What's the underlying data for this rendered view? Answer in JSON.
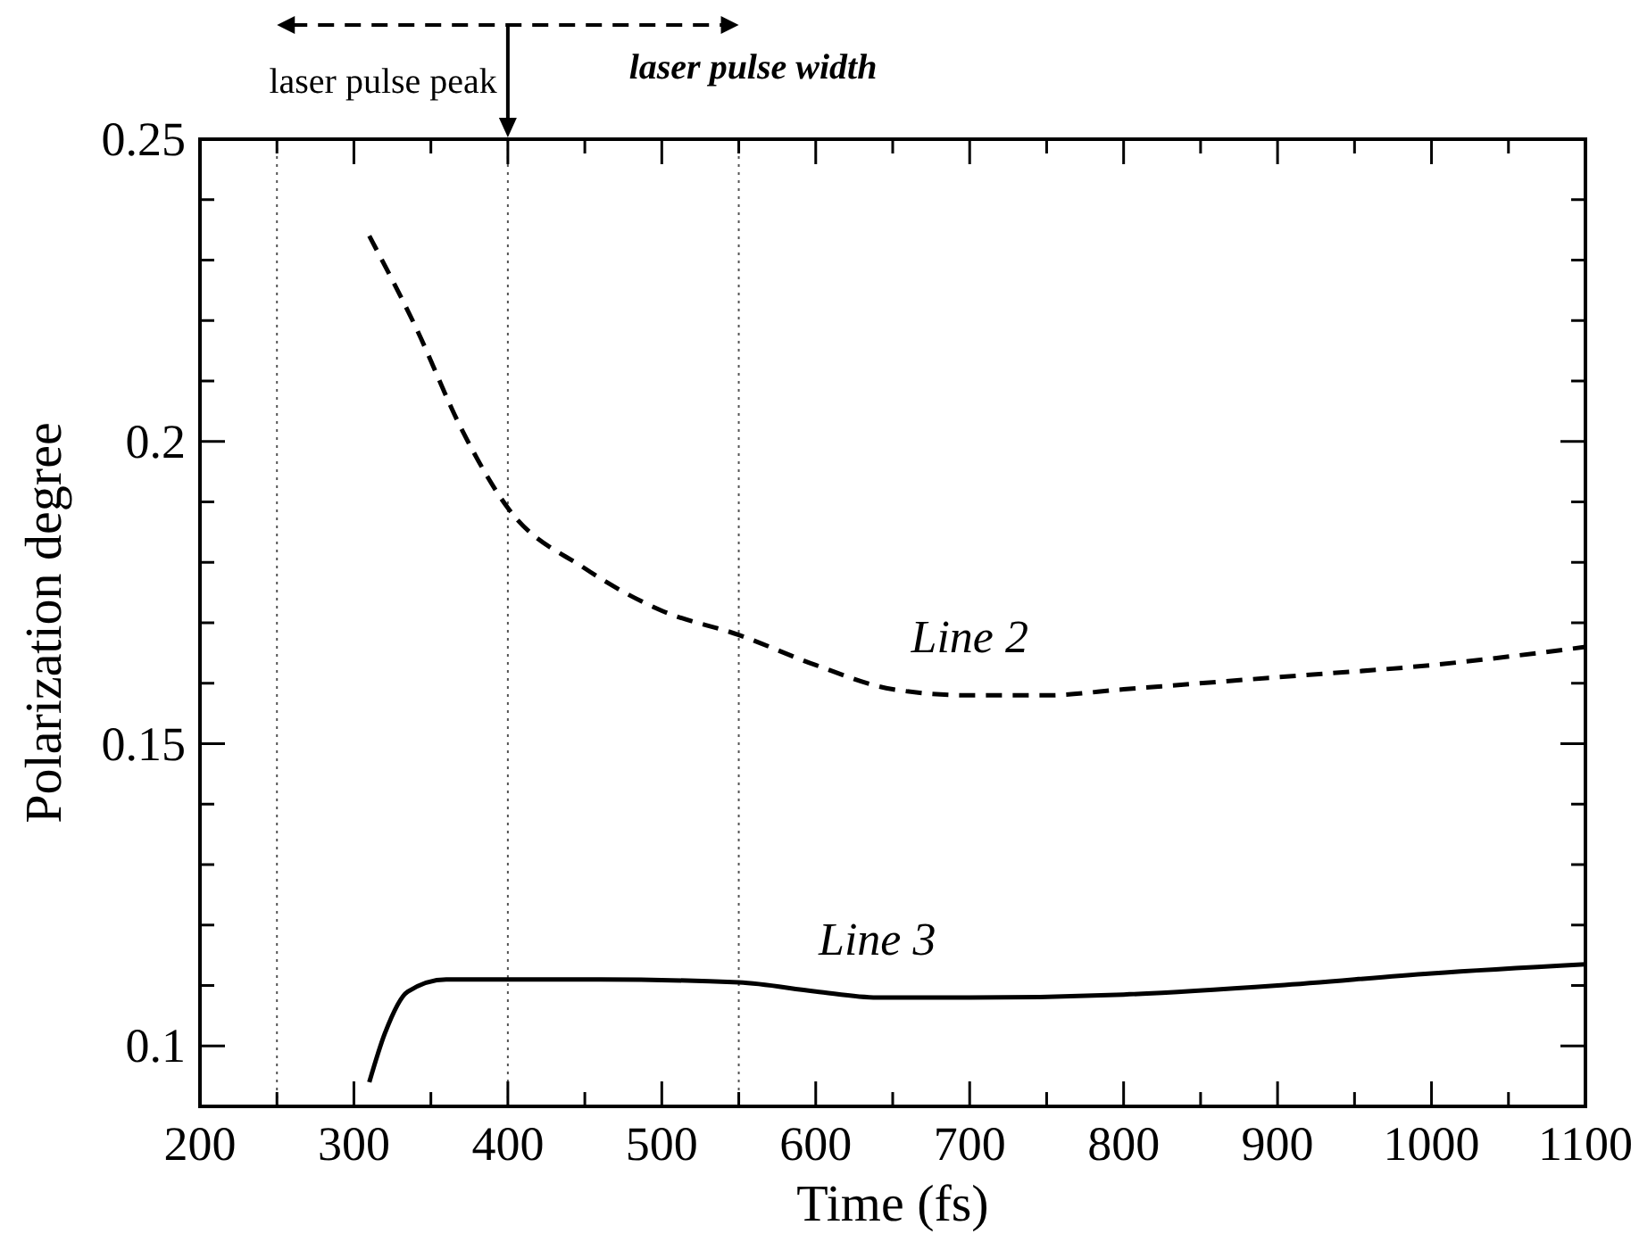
{
  "chart_data": {
    "type": "line",
    "xlabel": "Time (fs)",
    "ylabel": "Polarization degree",
    "xlim": [
      200,
      1100
    ],
    "ylim": [
      0.09,
      0.25
    ],
    "xticks": [
      200,
      {
        "value": 250,
        "label": null
      },
      300,
      {
        "value": 350,
        "label": null
      },
      400,
      {
        "value": 450,
        "label": null
      },
      500,
      {
        "value": 550,
        "label": null
      },
      600,
      {
        "value": 650,
        "label": null
      },
      700,
      {
        "value": 750,
        "label": null
      },
      800,
      {
        "value": 850,
        "label": null
      },
      900,
      {
        "value": 950,
        "label": null
      },
      1000,
      {
        "value": 1050,
        "label": null
      },
      1100
    ],
    "yticks": [
      0.1,
      {
        "value": 0.11,
        "label": null
      },
      {
        "value": 0.12,
        "label": null
      },
      {
        "value": 0.13,
        "label": null
      },
      {
        "value": 0.14,
        "label": null
      },
      0.15,
      {
        "value": 0.16,
        "label": null
      },
      {
        "value": 0.17,
        "label": null
      },
      {
        "value": 0.18,
        "label": null
      },
      {
        "value": 0.19,
        "label": null
      },
      0.2,
      {
        "value": 0.21,
        "label": null
      },
      {
        "value": 0.22,
        "label": null
      },
      {
        "value": 0.23,
        "label": null
      },
      {
        "value": 0.24,
        "label": null
      },
      0.25
    ],
    "grid": false,
    "marker": "none",
    "series": [
      {
        "name": "Line 2",
        "color": "#000000",
        "line_style": "dashed",
        "x": [
          310,
          340,
          370,
          400,
          450,
          500,
          550,
          600,
          650,
          700,
          750,
          800,
          900,
          1000,
          1100
        ],
        "values": [
          0.234,
          0.219,
          0.202,
          0.189,
          0.179,
          0.172,
          0.168,
          0.163,
          0.159,
          0.158,
          0.158,
          0.159,
          0.161,
          0.163,
          0.166
        ]
      },
      {
        "name": "Line 3",
        "color": "#000000",
        "line_style": "solid",
        "x": [
          310,
          320,
          335,
          360,
          400,
          460,
          550,
          600,
          640,
          700,
          800,
          900,
          1000,
          1100
        ],
        "values": [
          0.094,
          0.102,
          0.109,
          0.111,
          0.111,
          0.111,
          0.1105,
          0.109,
          0.108,
          0.108,
          0.1085,
          0.11,
          0.112,
          0.1135
        ]
      }
    ],
    "ref_lines": [
      {
        "axis": "x",
        "value": 250,
        "line_style": "dotted"
      },
      {
        "axis": "x",
        "value": 400,
        "line_style": "dotted"
      },
      {
        "axis": "x",
        "value": 550,
        "line_style": "dotted"
      }
    ],
    "annotations": [
      {
        "text": "laser pulse peak",
        "x": 400,
        "y": 0.25
      },
      {
        "text": "laser pulse width",
        "x": 550,
        "y": 0.25
      }
    ]
  }
}
